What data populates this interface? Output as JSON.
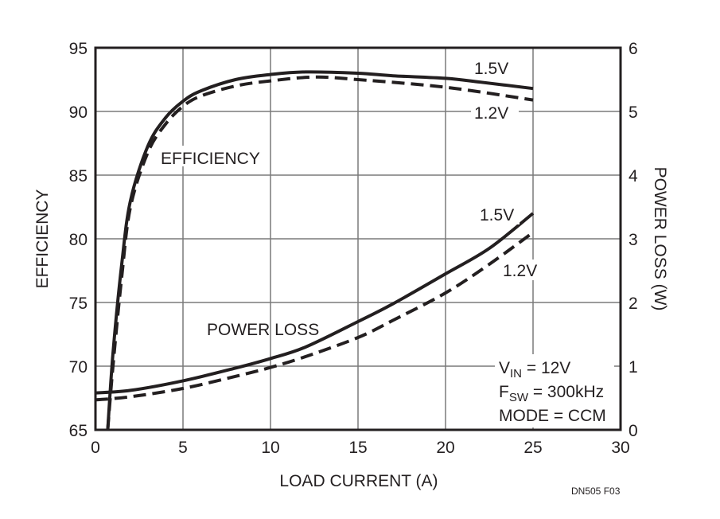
{
  "chart_data": {
    "type": "line",
    "xlabel": "LOAD CURRENT (A)",
    "ylabel": "EFFICIENCY",
    "y2label": "POWER LOSS (W)",
    "xlim": [
      0,
      30
    ],
    "ylim": [
      65,
      95
    ],
    "y2lim": [
      0,
      6
    ],
    "xticks": [
      "0",
      "5",
      "10",
      "15",
      "20",
      "25",
      "30"
    ],
    "yticks": [
      "65",
      "70",
      "75",
      "80",
      "85",
      "90",
      "95"
    ],
    "y2ticks": [
      "0",
      "1",
      "2",
      "3",
      "4",
      "5",
      "6"
    ],
    "grid": true,
    "annotations": {
      "efficiency": "EFFICIENCY",
      "power_loss": "POWER LOSS",
      "eff_15": "1.5V",
      "eff_12": "1.2V",
      "loss_15": "1.5V",
      "loss_12": "1.2V",
      "vin_main": "V",
      "vin_sub": "IN",
      "vin_val": " = 12V",
      "fsw_main": "F",
      "fsw_sub": "SW",
      "fsw_val": " = 300kHz",
      "mode": "MODE = CCM",
      "figure_id": "DN505 F03"
    },
    "series": [
      {
        "name": "Efficiency 1.5V",
        "axis": "left",
        "style": "solid",
        "x": [
          0.7,
          1,
          1.5,
          2,
          3,
          4,
          5,
          6,
          8,
          10,
          12,
          15,
          17,
          20,
          22,
          25
        ],
        "y": [
          65,
          71,
          78,
          83,
          87.3,
          89.5,
          90.8,
          91.6,
          92.5,
          92.9,
          93.1,
          93.0,
          92.8,
          92.6,
          92.3,
          91.8
        ]
      },
      {
        "name": "Efficiency 1.2V",
        "axis": "left",
        "style": "dashed",
        "x": [
          0.7,
          1,
          1.5,
          2,
          3,
          4,
          5,
          6,
          8,
          10,
          12.5,
          15,
          20,
          25
        ],
        "y": [
          65,
          70,
          77,
          82.5,
          86.8,
          89,
          90.4,
          91.2,
          92,
          92.4,
          92.7,
          92.5,
          91.9,
          90.9
        ]
      },
      {
        "name": "Power Loss 1.5V",
        "axis": "right",
        "style": "solid",
        "x": [
          0,
          2,
          5,
          8,
          10,
          12,
          15,
          17,
          20,
          22.5,
          25
        ],
        "y": [
          0.58,
          0.62,
          0.77,
          0.97,
          1.12,
          1.3,
          1.7,
          1.98,
          2.45,
          2.85,
          3.4
        ]
      },
      {
        "name": "Power Loss 1.2V",
        "axis": "right",
        "style": "dashed",
        "x": [
          0,
          2,
          5,
          8,
          10,
          12,
          15,
          17,
          20,
          22.5,
          25
        ],
        "y": [
          0.47,
          0.52,
          0.65,
          0.84,
          0.98,
          1.15,
          1.45,
          1.72,
          2.15,
          2.6,
          3.1
        ]
      }
    ]
  }
}
